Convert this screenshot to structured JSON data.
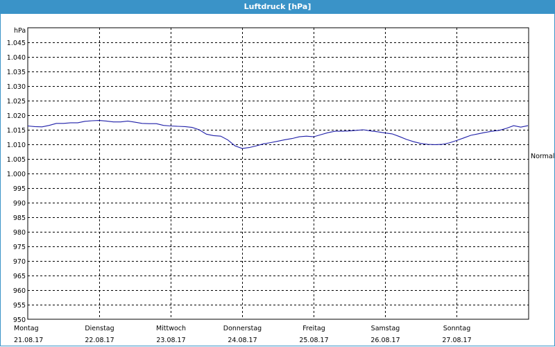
{
  "window": {
    "title": "Luftdruck [hPa]"
  },
  "chart_data": {
    "type": "line",
    "title": "Luftdruck [hPa]",
    "ylabel": "hPa",
    "ylim": [
      950,
      1050
    ],
    "yticks": [
      950,
      955,
      960,
      965,
      970,
      975,
      980,
      985,
      990,
      995,
      1000,
      1005,
      1010,
      1015,
      1020,
      1025,
      1030,
      1035,
      1040,
      1045
    ],
    "ytick_labels": [
      "950",
      "955",
      "960",
      "965",
      "970",
      "975",
      "980",
      "985",
      "990",
      "995",
      "1.000",
      "1.005",
      "1.010",
      "1.015",
      "1.020",
      "1.025",
      "1.030",
      "1.035",
      "1.040",
      "1.045"
    ],
    "xlim": [
      0,
      7
    ],
    "days": [
      {
        "weekday": "Montag",
        "date": "21.08.17"
      },
      {
        "weekday": "Dienstag",
        "date": "22.08.17"
      },
      {
        "weekday": "Mittwoch",
        "date": "23.08.17"
      },
      {
        "weekday": "Donnerstag",
        "date": "24.08.17"
      },
      {
        "weekday": "Freitag",
        "date": "25.08.17"
      },
      {
        "weekday": "Samstag",
        "date": "26.08.17"
      },
      {
        "weekday": "Sonntag",
        "date": "27.08.17"
      }
    ],
    "reference_label": "Normal",
    "reference_value": 1005.5,
    "grid": true,
    "line_color": "#1e1ea8",
    "x": [
      0,
      0.1,
      0.2,
      0.3,
      0.4,
      0.5,
      0.6,
      0.7,
      0.8,
      0.9,
      1.0,
      1.1,
      1.2,
      1.3,
      1.4,
      1.5,
      1.6,
      1.7,
      1.8,
      1.9,
      2.0,
      2.1,
      2.2,
      2.3,
      2.4,
      2.5,
      2.6,
      2.7,
      2.8,
      2.9,
      3.0,
      3.1,
      3.2,
      3.3,
      3.4,
      3.5,
      3.6,
      3.7,
      3.8,
      3.9,
      4.0,
      4.1,
      4.2,
      4.3,
      4.4,
      4.5,
      4.6,
      4.7,
      4.8,
      4.9,
      5.0,
      5.1,
      5.2,
      5.3,
      5.4,
      5.5,
      5.6,
      5.7,
      5.8,
      5.9,
      6.0,
      6.1,
      6.2,
      6.3,
      6.4,
      6.5,
      6.6,
      6.7,
      6.8,
      6.9,
      7.0
    ],
    "y": [
      1016.3,
      1016.1,
      1016.0,
      1016.5,
      1017.2,
      1017.2,
      1017.4,
      1017.4,
      1017.9,
      1018.1,
      1018.2,
      1018.0,
      1017.7,
      1017.7,
      1018.0,
      1017.6,
      1017.2,
      1017.1,
      1017.1,
      1016.5,
      1016.3,
      1016.2,
      1016.1,
      1015.8,
      1015.0,
      1013.5,
      1013.0,
      1012.8,
      1011.5,
      1009.5,
      1008.6,
      1008.9,
      1009.5,
      1010.2,
      1010.6,
      1011.1,
      1011.6,
      1012.0,
      1012.6,
      1012.8,
      1012.6,
      1013.3,
      1014.0,
      1014.5,
      1014.5,
      1014.6,
      1014.8,
      1015.0,
      1014.6,
      1014.3,
      1013.9,
      1013.6,
      1012.7,
      1011.7,
      1010.9,
      1010.3,
      1010.0,
      1009.9,
      1010.0,
      1010.5,
      1011.3,
      1012.2,
      1013.1,
      1013.6,
      1014.1,
      1014.5,
      1014.8,
      1015.5,
      1016.4,
      1015.9,
      1016.4
    ]
  }
}
